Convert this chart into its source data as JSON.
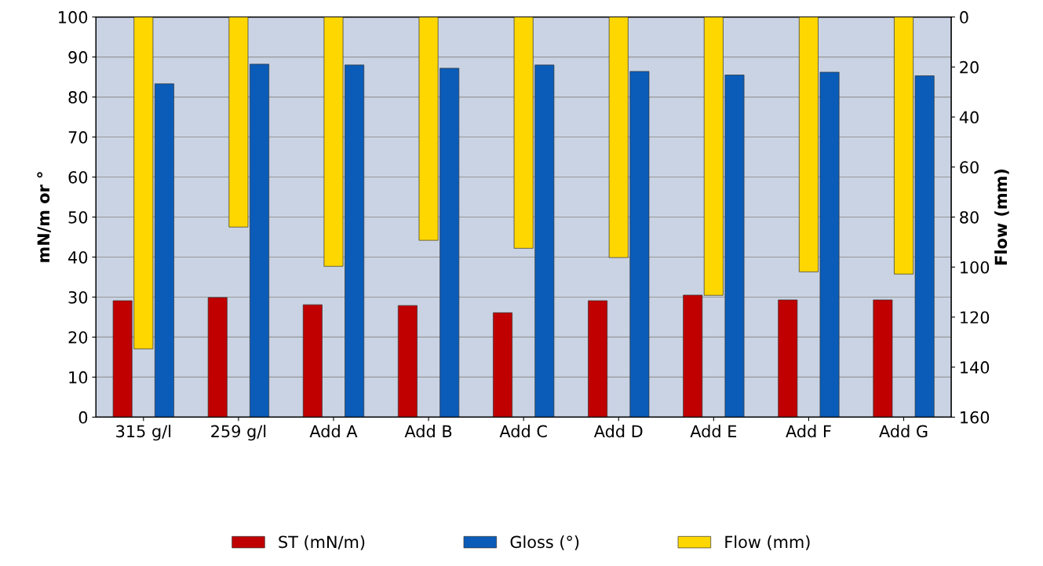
{
  "chart_data": {
    "type": "bar",
    "categories": [
      "315 g/l",
      "259 g/l",
      "Add A",
      "Add B",
      "Add C",
      "Add D",
      "Add E",
      "Add F",
      "Add G"
    ],
    "series": [
      {
        "name": "ST (mN/m)",
        "color": "#c00000",
        "values": [
          29.1,
          29.9,
          28.1,
          27.9,
          26.1,
          29.1,
          30.5,
          29.3,
          29.3
        ]
      },
      {
        "name": "Gloss (°)",
        "color": "#0b5cb8",
        "values": [
          83.3,
          88.2,
          88.0,
          87.2,
          88.0,
          86.4,
          85.5,
          86.2,
          85.3
        ]
      },
      {
        "name": "Flow (mm)",
        "color": "#ffd700",
        "axis": "y2",
        "values": [
          132.7,
          84.0,
          99.7,
          89.3,
          92.5,
          96.2,
          111.3,
          101.9,
          102.8
        ]
      }
    ],
    "ylabel": "mN/m or °",
    "y2label": "Flow (mm)",
    "ylim": [
      0,
      100
    ],
    "yticks": [
      0,
      10,
      20,
      30,
      40,
      50,
      60,
      70,
      80,
      90,
      100
    ],
    "y2lim": [
      160,
      0
    ],
    "y2ticks": [
      0,
      20,
      40,
      60,
      80,
      100,
      120,
      140,
      160
    ],
    "grid": "y",
    "legend": "bottom"
  }
}
